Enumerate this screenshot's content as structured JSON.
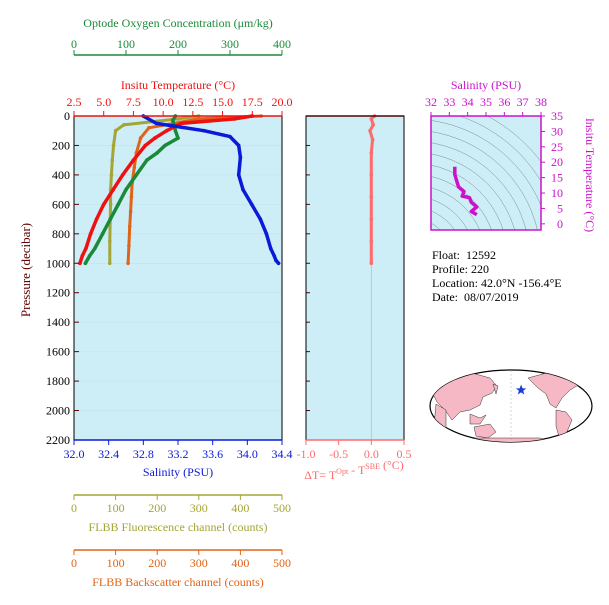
{
  "float_info": {
    "float_label": "Float:",
    "float_value": "12592",
    "profile_label": "Profile:",
    "profile_value": "220",
    "location_label": "Location:",
    "location_value": "42.0°N  -156.4°E",
    "date_label": "Date:",
    "date_value": "08/07/2019"
  },
  "colors": {
    "oxygen": "#1a8a3a",
    "temperature": "#ee1111",
    "salinity": "#0a1ad8",
    "fluorescence": "#a5a535",
    "backscatter": "#e06418",
    "delta_t": "#ff6a6a",
    "ts_panel": "#cc11cc",
    "pressure": "#600000",
    "panel_bg": "#cdeef6"
  },
  "chart_data": [
    {
      "type": "line",
      "panel": "main_profile",
      "ylabel": "Pressure (decibar)",
      "ylim": [
        0,
        2200
      ],
      "yticks": [
        0,
        200,
        400,
        600,
        800,
        1000,
        1200,
        1400,
        1600,
        1800,
        2000,
        2200
      ],
      "axes": {
        "oxygen": {
          "label": "Optode Oxygen Concentration (μm/kg)",
          "range": [
            0,
            400
          ],
          "ticks": [
            0,
            100,
            200,
            300,
            400
          ],
          "tick_labels": [
            "0",
            "100",
            "200",
            "300",
            "400"
          ]
        },
        "temperature": {
          "label": "Insitu Temperature (°C)",
          "range": [
            2.5,
            20.0
          ],
          "ticks": [
            2.5,
            5.0,
            7.5,
            10.0,
            12.5,
            15.0,
            17.5,
            20.0
          ],
          "tick_labels": [
            "2.5",
            "5.0",
            "7.5",
            "10.0",
            "12.5",
            "15.0",
            "17.5",
            "20.0"
          ]
        },
        "salinity": {
          "label": "Salinity (PSU)",
          "range": [
            32.0,
            34.4
          ],
          "ticks": [
            32.0,
            32.4,
            32.8,
            33.2,
            33.6,
            34.0,
            34.4
          ],
          "tick_labels": [
            "32.0",
            "32.4",
            "32.8",
            "33.2",
            "33.6",
            "34.0",
            "34.4"
          ]
        },
        "fluorescence": {
          "label": "FLBB Fluorescence channel (counts)",
          "range": [
            0,
            500
          ],
          "ticks": [
            0,
            100,
            200,
            300,
            400,
            500
          ],
          "tick_labels": [
            "0",
            "100",
            "200",
            "300",
            "400",
            "500"
          ]
        },
        "backscatter": {
          "label": "FLBB Backscatter channel (counts)",
          "range": [
            0,
            500
          ],
          "ticks": [
            0,
            100,
            200,
            300,
            400,
            500
          ],
          "tick_labels": [
            "0",
            "100",
            "200",
            "300",
            "400",
            "500"
          ]
        }
      },
      "series": [
        {
          "name": "Optode Oxygen Concentration (μm/kg)",
          "axis": "oxygen",
          "x": [
            195,
            190,
            195,
            200,
            175,
            160,
            140,
            120,
            100,
            85,
            70,
            55,
            40,
            30,
            22
          ],
          "y": [
            0,
            30,
            100,
            150,
            200,
            250,
            300,
            400,
            500,
            600,
            700,
            800,
            900,
            950,
            1000
          ]
        },
        {
          "name": "Insitu Temperature (°C)",
          "axis": "temperature",
          "x": [
            17.5,
            16.0,
            11.5,
            10.3,
            9.3,
            8.5,
            7.5,
            6.6,
            5.8,
            5.0,
            4.4,
            3.9,
            3.5,
            3.2,
            3.0
          ],
          "y": [
            0,
            20,
            50,
            100,
            150,
            200,
            300,
            400,
            500,
            600,
            700,
            800,
            900,
            950,
            1000
          ]
        },
        {
          "name": "Salinity (PSU)",
          "axis": "salinity",
          "x": [
            32.8,
            32.95,
            33.5,
            33.8,
            33.9,
            33.92,
            33.9,
            33.95,
            34.05,
            34.15,
            34.22,
            34.27,
            34.31,
            34.33,
            34.36
          ],
          "y": [
            0,
            50,
            100,
            140,
            200,
            280,
            400,
            500,
            600,
            700,
            800,
            900,
            950,
            980,
            1000
          ]
        },
        {
          "name": "FLBB Fluorescence channel (counts)",
          "axis": "fluorescence",
          "x": [
            300,
            250,
            120,
            100,
            95,
            92,
            90,
            88,
            88,
            87,
            86,
            86
          ],
          "y": [
            0,
            20,
            60,
            100,
            200,
            300,
            400,
            500,
            600,
            700,
            850,
            1000
          ]
        },
        {
          "name": "FLBB Backscatter channel (counts)",
          "axis": "backscatter",
          "x": [
            450,
            300,
            180,
            160,
            150,
            145,
            140,
            138,
            136,
            134,
            132,
            130
          ],
          "y": [
            0,
            20,
            80,
            150,
            250,
            350,
            450,
            550,
            650,
            750,
            880,
            1000
          ]
        }
      ]
    },
    {
      "type": "line",
      "panel": "delta_t",
      "xlabel": "ΔT= T^Opt - T^SBE (°C)",
      "xlabel_parts": {
        "pre": "ΔT= T",
        "sup1": "Opt",
        "mid": " - T",
        "sup2": "SBE",
        "post": " (°C)"
      },
      "xlim": [
        -1.0,
        0.5
      ],
      "xticks": [
        -1.0,
        -0.5,
        0.0,
        0.5
      ],
      "xtick_labels": [
        "-1.0",
        "-0.5",
        "0.0",
        "0.5"
      ],
      "ylim": [
        0,
        2200
      ],
      "series": [
        {
          "x": [
            0.05,
            0.0,
            0.03,
            -0.02,
            0.02,
            0.0,
            0.0,
            0.0,
            0.0,
            0.0,
            0.0
          ],
          "y": [
            0,
            20,
            60,
            100,
            160,
            250,
            400,
            550,
            700,
            850,
            1000
          ]
        }
      ]
    },
    {
      "type": "line",
      "panel": "ts_diagram",
      "xlabel": "Salinity (PSU)",
      "ylabel": "Insitu Temperature (°C)",
      "xlim": [
        32,
        38
      ],
      "ylim": [
        -2,
        35
      ],
      "xticks": [
        32,
        33,
        34,
        35,
        36,
        37,
        38
      ],
      "xtick_labels": [
        "32",
        "33",
        "34",
        "35",
        "36",
        "37",
        "38"
      ],
      "yticks": [
        0,
        5,
        10,
        15,
        20,
        25,
        30,
        35
      ],
      "ytick_labels": [
        "0",
        "5",
        "10",
        "15",
        "20",
        "25",
        "30",
        "35"
      ],
      "series": [
        {
          "x": [
            33.3,
            33.3,
            33.5,
            33.8,
            33.7,
            34.1,
            34.2,
            34.5,
            34.4,
            34.2,
            34.5
          ],
          "y": [
            18.5,
            16.0,
            12.0,
            10.5,
            9.0,
            8.5,
            7.0,
            5.5,
            5.0,
            4.0,
            3.0
          ]
        }
      ]
    },
    {
      "type": "map",
      "panel": "location_map",
      "marker": {
        "lat": 42.0,
        "lon": -156.4
      }
    }
  ]
}
